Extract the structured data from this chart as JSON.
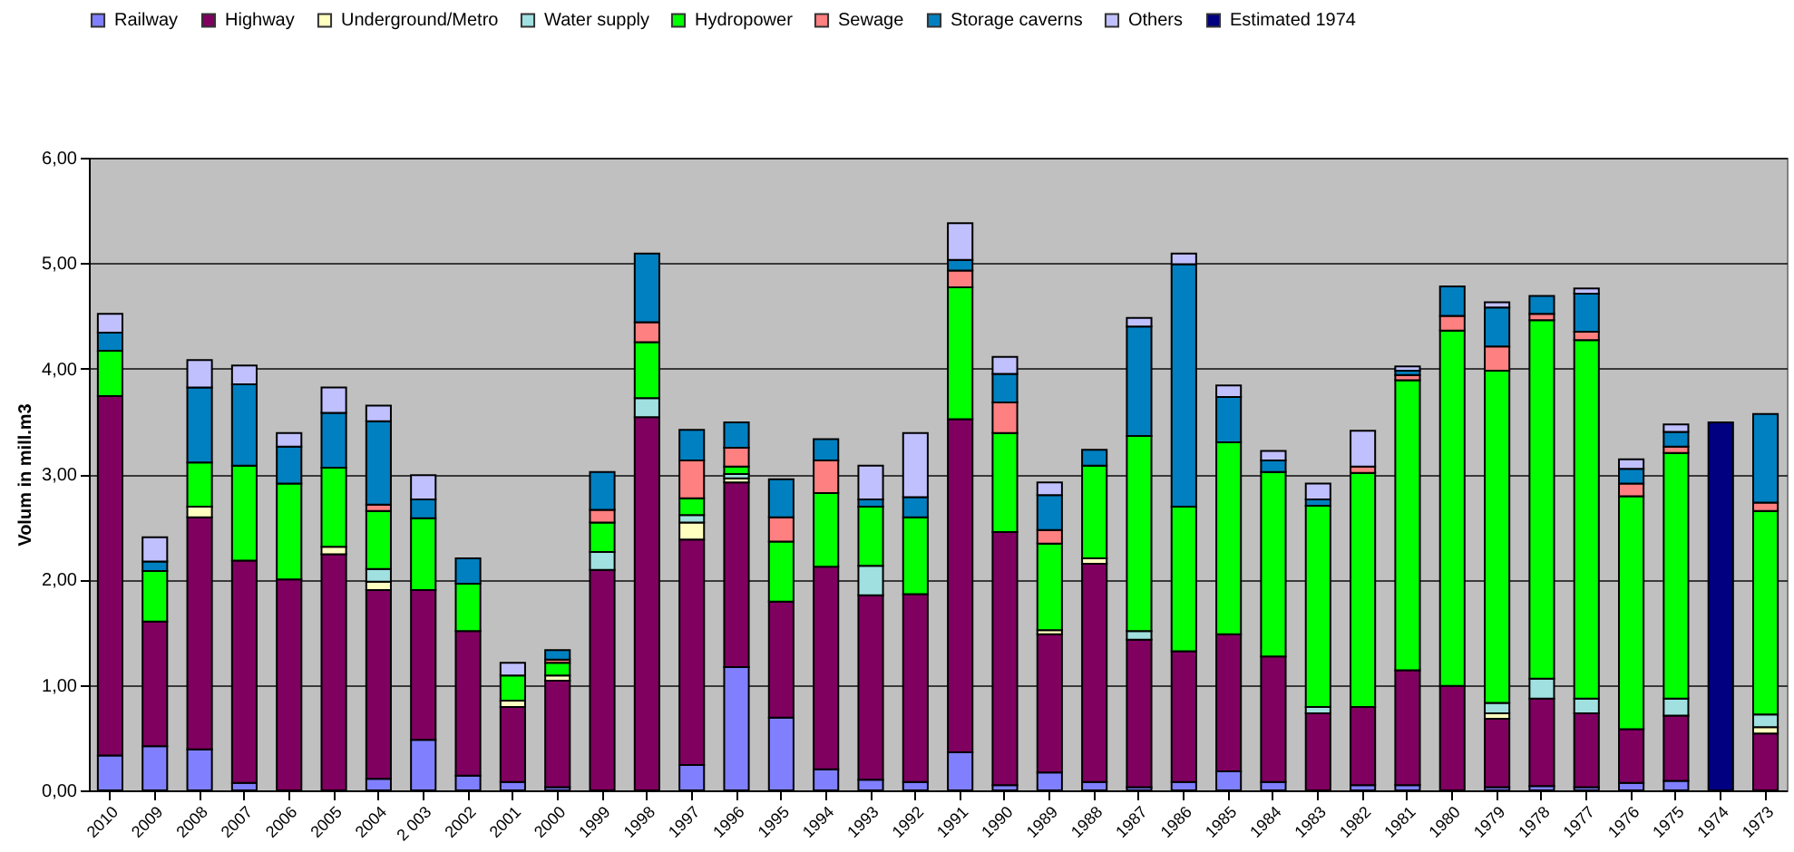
{
  "chart_data": {
    "type": "bar",
    "stacked": true,
    "ylabel": "Volum in mill.m3",
    "legend": "top",
    "grid": "y",
    "ylim": [
      0,
      6
    ],
    "yticks": [
      {
        "value": 0,
        "label": "0,00"
      },
      {
        "value": 1,
        "label": "1,00"
      },
      {
        "value": 2,
        "label": "2,00"
      },
      {
        "value": 3,
        "label": "3,00"
      },
      {
        "value": 4,
        "label": "4,00"
      },
      {
        "value": 5,
        "label": "5,00"
      },
      {
        "value": 6,
        "label": "6,00"
      }
    ],
    "categories": [
      "2010",
      "2009",
      "2008",
      "2007",
      "2006",
      "2005",
      "2004",
      "2 003",
      "2002",
      "2001",
      "2000",
      "1999",
      "1998",
      "1997",
      "1996",
      "1995",
      "1994",
      "1993",
      "1992",
      "1991",
      "1990",
      "1989",
      "1988",
      "1987",
      "1986",
      "1985",
      "1984",
      "1983",
      "1982",
      "1981",
      "1980",
      "1979",
      "1978",
      "1977",
      "1976",
      "1975",
      "1974",
      "1973"
    ],
    "series": [
      {
        "name": "Railway",
        "color": "#8080ff",
        "values": [
          0.33,
          0.42,
          0.39,
          0.07,
          null,
          null,
          0.11,
          0.48,
          0.14,
          0.08,
          0.03,
          null,
          null,
          0.24,
          1.17,
          0.69,
          0.2,
          0.1,
          0.08,
          0.36,
          0.05,
          0.17,
          0.08,
          0.03,
          0.08,
          0.18,
          0.08,
          null,
          0.05,
          0.05,
          null,
          0.03,
          0.04,
          0.03,
          0.07,
          0.09,
          null,
          null
        ]
      },
      {
        "name": "Highway",
        "color": "#800060",
        "values": [
          3.41,
          1.18,
          2.2,
          2.11,
          2.0,
          2.24,
          1.79,
          1.42,
          1.37,
          0.71,
          1.01,
          2.09,
          3.54,
          2.14,
          1.75,
          1.1,
          1.92,
          1.75,
          1.78,
          3.16,
          2.4,
          1.31,
          2.07,
          1.4,
          1.24,
          1.3,
          1.19,
          0.73,
          0.74,
          1.09,
          0.99,
          0.65,
          0.83,
          0.7,
          0.51,
          0.62,
          null,
          0.54
        ]
      },
      {
        "name": "Underground/Metro",
        "color": "#ffffc0",
        "values": [
          null,
          null,
          0.1,
          null,
          null,
          0.07,
          0.08,
          null,
          null,
          0.06,
          0.05,
          null,
          null,
          0.16,
          0.04,
          null,
          null,
          null,
          null,
          null,
          null,
          0.04,
          0.05,
          null,
          null,
          null,
          null,
          null,
          null,
          null,
          null,
          0.05,
          null,
          null,
          null,
          null,
          null,
          0.06
        ]
      },
      {
        "name": "Water supply",
        "color": "#a0e0e0",
        "values": [
          null,
          null,
          null,
          null,
          null,
          null,
          0.12,
          null,
          null,
          null,
          null,
          0.17,
          0.18,
          0.07,
          0.04,
          null,
          null,
          0.28,
          null,
          null,
          null,
          null,
          null,
          0.08,
          null,
          null,
          null,
          0.06,
          null,
          null,
          null,
          0.1,
          0.19,
          0.14,
          null,
          0.16,
          null,
          0.12
        ]
      },
      {
        "name": "Hydropower",
        "color": "#00ff00",
        "values": [
          0.43,
          0.48,
          0.42,
          0.9,
          0.91,
          0.75,
          0.55,
          0.68,
          0.45,
          0.24,
          0.12,
          0.28,
          0.53,
          0.16,
          0.07,
          0.57,
          0.7,
          0.56,
          0.73,
          1.25,
          0.94,
          0.82,
          0.88,
          1.85,
          1.37,
          1.82,
          1.75,
          1.91,
          2.22,
          2.75,
          3.37,
          3.15,
          3.4,
          3.4,
          2.21,
          2.33,
          null,
          1.93
        ]
      },
      {
        "name": "Sewage",
        "color": "#ff8080",
        "values": [
          null,
          null,
          null,
          null,
          null,
          null,
          0.06,
          null,
          null,
          null,
          0.03,
          0.12,
          0.19,
          0.36,
          0.18,
          0.23,
          0.31,
          null,
          null,
          0.16,
          0.29,
          0.13,
          null,
          null,
          null,
          null,
          null,
          null,
          0.06,
          0.05,
          0.14,
          0.23,
          0.06,
          0.08,
          0.12,
          0.06,
          null,
          0.08
        ]
      },
      {
        "name": "Storage caverns",
        "color": "#0080c0",
        "values": [
          0.17,
          0.09,
          0.71,
          0.77,
          0.35,
          0.52,
          0.79,
          0.18,
          0.24,
          null,
          0.09,
          0.36,
          0.65,
          0.29,
          0.24,
          0.36,
          0.2,
          0.07,
          0.19,
          0.1,
          0.27,
          0.33,
          0.15,
          1.04,
          2.3,
          0.43,
          0.11,
          0.06,
          null,
          0.04,
          0.28,
          0.37,
          0.17,
          0.36,
          0.14,
          0.14,
          null,
          0.84
        ]
      },
      {
        "name": "Others",
        "color": "#c0c0ff",
        "values": [
          0.18,
          0.23,
          0.26,
          0.18,
          0.13,
          0.24,
          0.15,
          0.23,
          null,
          0.12,
          null,
          null,
          null,
          null,
          null,
          null,
          null,
          0.32,
          0.61,
          0.35,
          0.16,
          0.12,
          null,
          0.08,
          0.1,
          0.11,
          0.09,
          0.15,
          0.34,
          0.04,
          null,
          0.05,
          null,
          0.05,
          0.09,
          0.07,
          null,
          null
        ]
      },
      {
        "name": "Estimated 1974",
        "color": "#000080",
        "values": [
          null,
          null,
          null,
          null,
          null,
          null,
          null,
          null,
          null,
          null,
          null,
          null,
          null,
          null,
          null,
          null,
          null,
          null,
          null,
          null,
          null,
          null,
          null,
          null,
          null,
          null,
          null,
          null,
          null,
          null,
          null,
          null,
          null,
          null,
          null,
          null,
          3.49,
          null
        ]
      }
    ]
  }
}
